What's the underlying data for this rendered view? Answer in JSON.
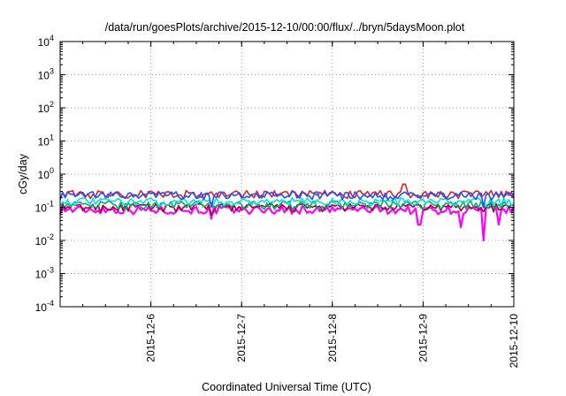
{
  "chart_data": {
    "type": "line",
    "title": "/data/run/goesPlots/archive/2015-12-10/00:00/flux/../bryn/5daysMoon.plot",
    "xlabel": "Coordinated Universal Time (UTC)",
    "ylabel": "cGy/day",
    "y_scale": "log",
    "ylim": [
      0.0001,
      10000
    ],
    "y_ticks": [
      {
        "base": "10",
        "exp": "-4",
        "value": 0.0001
      },
      {
        "base": "10",
        "exp": "-3",
        "value": 0.001
      },
      {
        "base": "10",
        "exp": "-2",
        "value": 0.01
      },
      {
        "base": "10",
        "exp": "-1",
        "value": 0.1
      },
      {
        "base": "10",
        "exp": "0",
        "value": 1
      },
      {
        "base": "10",
        "exp": "1",
        "value": 10
      },
      {
        "base": "10",
        "exp": "2",
        "value": 100
      },
      {
        "base": "10",
        "exp": "3",
        "value": 1000
      },
      {
        "base": "10",
        "exp": "4",
        "value": 10000
      }
    ],
    "xlim": [
      "2015-12-05T00:00",
      "2015-12-10T00:00"
    ],
    "x_ticks": [
      "2015-12-6",
      "2015-12-7",
      "2015-12-8",
      "2015-12-9",
      "2015-12-10"
    ],
    "grid": true,
    "series": [
      {
        "color": "#ff00ff",
        "level": 0.085,
        "dips": [
          [
            "2015-12-06T16:00",
            0.045
          ],
          [
            "2015-12-08T23:00",
            0.03
          ],
          [
            "2015-12-09T10:00",
            0.025
          ],
          [
            "2015-12-09T16:00",
            0.01
          ],
          [
            "2015-12-09T20:00",
            0.03
          ]
        ]
      },
      {
        "color": "#a0003c",
        "level": 0.1,
        "dips": [
          [
            "2015-12-06T16:00",
            0.06
          ]
        ]
      },
      {
        "color": "#00b060",
        "level": 0.12,
        "dips": []
      },
      {
        "color": "#00e0e0",
        "level": 0.15,
        "dips": []
      },
      {
        "color": "#e02020",
        "level": 0.25,
        "dips": [
          [
            "2015-12-08T19:00",
            0.5
          ]
        ]
      },
      {
        "color": "#2050ff",
        "level": 0.23,
        "dips": [
          [
            "2015-12-06T16:00",
            0.1
          ],
          [
            "2015-12-09T16:00",
            0.1
          ]
        ]
      }
    ]
  }
}
